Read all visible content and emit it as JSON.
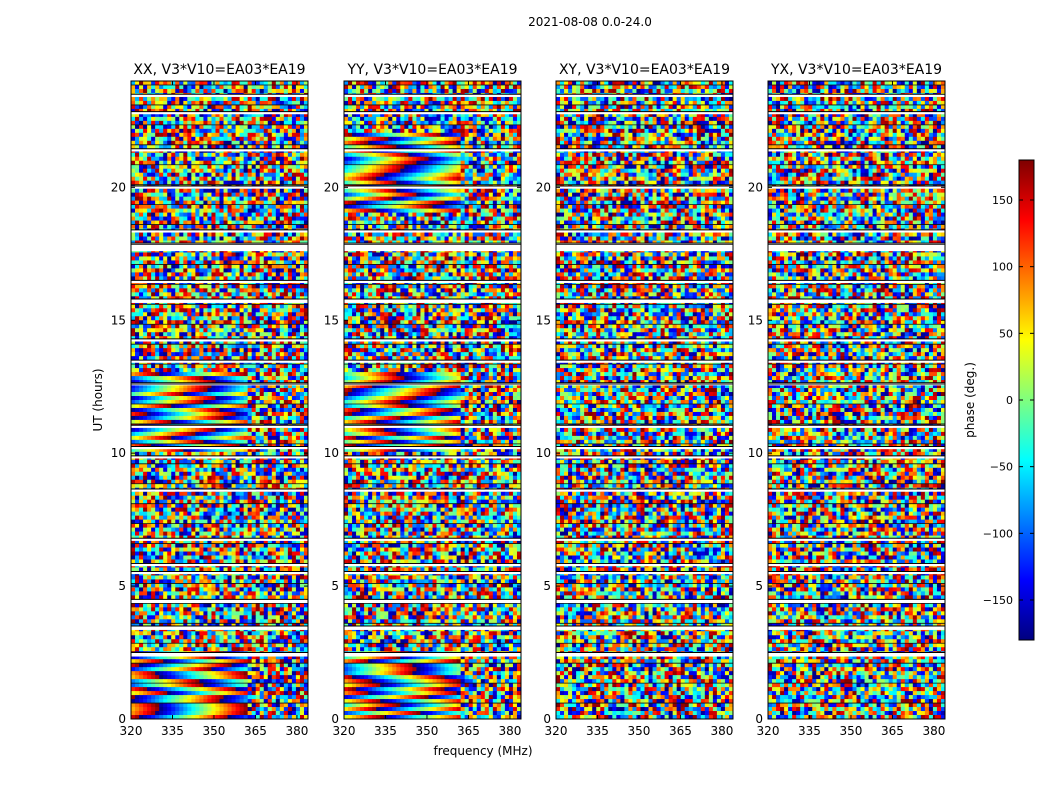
{
  "figure": {
    "suptitle": "2021-08-08 0.0-24.0",
    "xlabel": "frequency (MHz)",
    "ylabel": "UT (hours)"
  },
  "colorbar": {
    "label": "phase (deg.)",
    "range": [
      -180,
      180
    ],
    "ticks": [
      "150",
      "100",
      "50",
      "0",
      "−50",
      "−100",
      "−150"
    ],
    "tick_values": [
      150,
      100,
      50,
      0,
      -50,
      -100,
      -150
    ],
    "colormap": "jet",
    "colors": [
      "#00007f",
      "#0000ff",
      "#007fff",
      "#00ffff",
      "#7fff7f",
      "#ffff00",
      "#ff7f00",
      "#ff0000",
      "#7f0000"
    ]
  },
  "chart_data": [
    {
      "type": "heatmap",
      "title": "XX, V3*V10=EA03*EA19",
      "xlabel": "frequency (MHz)",
      "ylabel": "UT (hours)",
      "xlim": [
        320,
        384
      ],
      "ylim": [
        0,
        24
      ],
      "xticks": [
        "320",
        "335",
        "350",
        "365",
        "380"
      ],
      "xtick_values": [
        320,
        335,
        350,
        365,
        380
      ],
      "yticks": [
        "0",
        "5",
        "10",
        "15",
        "20"
      ],
      "ytick_values": [
        0,
        5,
        10,
        15,
        20
      ],
      "value": "visibility phase (deg.)",
      "appearance": "mostly noise-like phase; coherent fringes near 0-2.5 h and 10-13 h"
    },
    {
      "type": "heatmap",
      "title": "YY, V3*V10=EA03*EA19",
      "xlabel": "frequency (MHz)",
      "ylabel": "UT (hours)",
      "xlim": [
        320,
        384
      ],
      "ylim": [
        0,
        24
      ],
      "xticks": [
        "320",
        "335",
        "350",
        "365",
        "380"
      ],
      "xtick_values": [
        320,
        335,
        350,
        365,
        380
      ],
      "yticks": [
        "0",
        "5",
        "10",
        "15",
        "20"
      ],
      "ytick_values": [
        0,
        5,
        10,
        15,
        20
      ],
      "value": "visibility phase (deg.)",
      "appearance": "coherent fringes near 0-2.5 h, 10-13 h and 19-22 h"
    },
    {
      "type": "heatmap",
      "title": "XY, V3*V10=EA03*EA19",
      "xlabel": "frequency (MHz)",
      "ylabel": "UT (hours)",
      "xlim": [
        320,
        384
      ],
      "ylim": [
        0,
        24
      ],
      "xticks": [
        "320",
        "335",
        "350",
        "365",
        "380"
      ],
      "xtick_values": [
        320,
        335,
        350,
        365,
        380
      ],
      "yticks": [
        "0",
        "5",
        "10",
        "15",
        "20"
      ],
      "ytick_values": [
        0,
        5,
        10,
        15,
        20
      ],
      "value": "visibility phase (deg.)",
      "appearance": "noise-like phase throughout"
    },
    {
      "type": "heatmap",
      "title": "YX, V3*V10=EA03*EA19",
      "xlabel": "frequency (MHz)",
      "ylabel": "UT (hours)",
      "xlim": [
        320,
        384
      ],
      "ylim": [
        0,
        24
      ],
      "xticks": [
        "320",
        "335",
        "350",
        "365",
        "380"
      ],
      "xtick_values": [
        320,
        335,
        350,
        365,
        380
      ],
      "yticks": [
        "0",
        "5",
        "10",
        "15",
        "20"
      ],
      "ytick_values": [
        0,
        5,
        10,
        15,
        20
      ],
      "value": "visibility phase (deg.)",
      "appearance": "noise-like phase throughout"
    }
  ],
  "flagged_time_ranges_hours": [
    [
      2.35,
      2.5
    ],
    [
      3.35,
      3.5
    ],
    [
      4.35,
      4.5
    ],
    [
      5.45,
      5.55
    ],
    [
      5.75,
      5.85
    ],
    [
      6.7,
      6.8
    ],
    [
      8.55,
      8.65
    ],
    [
      9.8,
      9.9
    ],
    [
      10.15,
      10.25
    ],
    [
      10.95,
      11.05
    ],
    [
      12.55,
      12.65
    ],
    [
      13.4,
      13.5
    ],
    [
      14.2,
      14.3
    ],
    [
      15.65,
      15.8
    ],
    [
      16.4,
      16.5
    ],
    [
      17.6,
      17.9
    ],
    [
      18.3,
      18.4
    ],
    [
      19.95,
      20.05
    ],
    [
      21.35,
      21.45
    ],
    [
      22.75,
      22.85
    ],
    [
      23.4,
      23.5
    ]
  ]
}
